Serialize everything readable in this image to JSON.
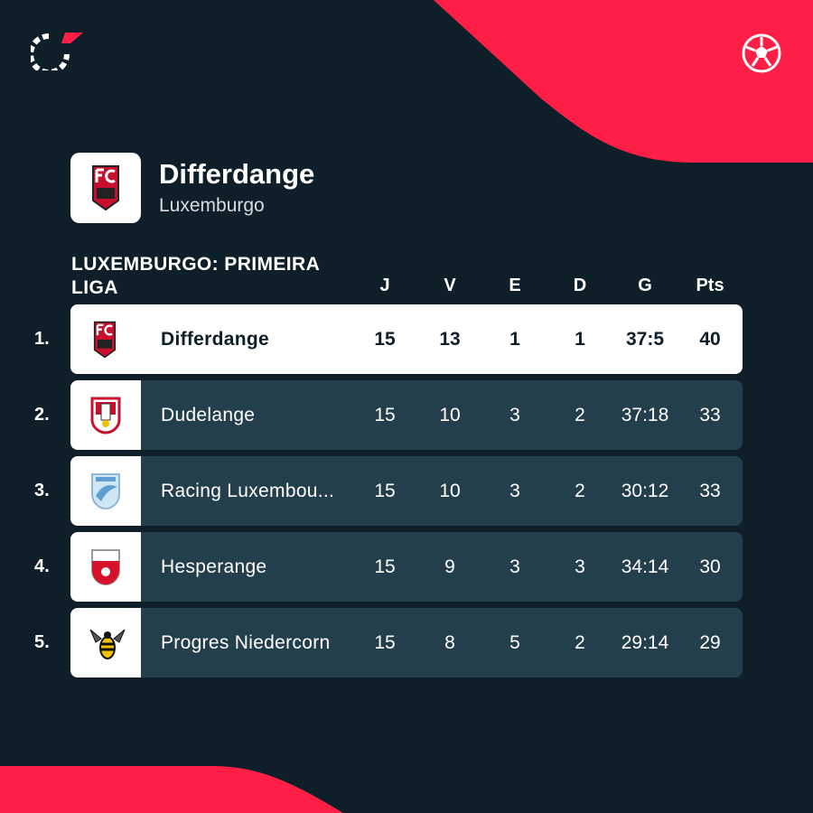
{
  "colors": {
    "background": "#0f1f2a",
    "accent": "#ff1e46",
    "row": "#233f4c",
    "highlight_row": "#ffffff"
  },
  "icons": {
    "app_logo": "flashscore-logo-icon",
    "sport": "football-icon"
  },
  "team": {
    "name": "Differdange",
    "country": "Luxemburgo"
  },
  "league": {
    "title": "LUXEMBURGO: PRIMEIRA LIGA"
  },
  "columns": {
    "played": "J",
    "won": "V",
    "drawn": "E",
    "lost": "D",
    "goals": "G",
    "points": "Pts"
  },
  "standings": [
    {
      "rank": "1.",
      "team": "Differdange",
      "played": "15",
      "won": "13",
      "drawn": "1",
      "lost": "1",
      "goals": "37:5",
      "points": "40",
      "crest": "differdange-crest-icon"
    },
    {
      "rank": "2.",
      "team": "Dudelange",
      "played": "15",
      "won": "10",
      "drawn": "3",
      "lost": "2",
      "goals": "37:18",
      "points": "33",
      "crest": "dudelange-crest-icon"
    },
    {
      "rank": "3.",
      "team": "Racing Luxembou...",
      "played": "15",
      "won": "10",
      "drawn": "3",
      "lost": "2",
      "goals": "30:12",
      "points": "33",
      "crest": "racing-crest-icon"
    },
    {
      "rank": "4.",
      "team": "Hesperange",
      "played": "15",
      "won": "9",
      "drawn": "3",
      "lost": "3",
      "goals": "34:14",
      "points": "30",
      "crest": "hesperange-crest-icon"
    },
    {
      "rank": "5.",
      "team": "Progres Niedercorn",
      "played": "15",
      "won": "8",
      "drawn": "5",
      "lost": "2",
      "goals": "29:14",
      "points": "29",
      "crest": "progres-crest-icon"
    }
  ]
}
